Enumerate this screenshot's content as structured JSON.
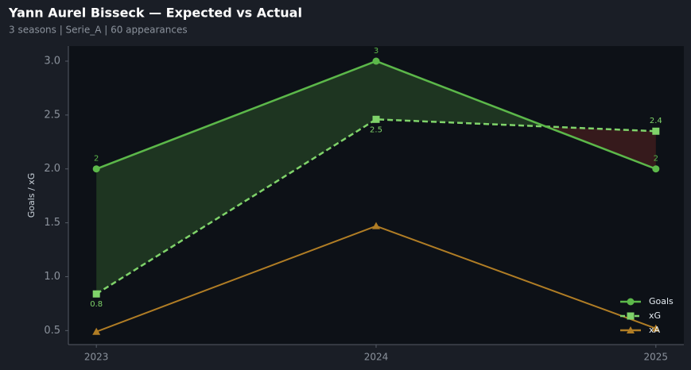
{
  "chart_data": {
    "type": "line",
    "title": "Yann Aurel Bisseck — Expected vs Actual",
    "subtitle": "3 seasons | Serie_A | 60 appearances",
    "y_label": "Goals / xG",
    "x": [
      2023,
      2024,
      2025
    ],
    "xlim": [
      2022.9,
      2025.1
    ],
    "xticks": [
      2023,
      2024,
      2025
    ],
    "ylim": [
      0.37,
      3.14
    ],
    "yticks": [
      0.5,
      {
        "value": 1,
        "label": "1.0"
      },
      1.5,
      {
        "value": 2,
        "label": "2.0"
      },
      2.5,
      {
        "value": 3,
        "label": "3.0"
      }
    ],
    "legend": "lower right",
    "series": [
      {
        "name": "Goals",
        "color": "#5cb84a",
        "marker": "circle",
        "dash": false,
        "values": [
          2,
          3,
          2
        ],
        "value_labels": [
          "2",
          "3",
          "2"
        ]
      },
      {
        "name": "xG",
        "color": "#7fd36a",
        "marker": "square",
        "dash": true,
        "values": [
          0.84,
          2.46,
          2.35
        ],
        "value_labels": [
          "0.8",
          "2.5",
          "2.4"
        ]
      },
      {
        "name": "xA",
        "color": "#b07d25",
        "marker": "triangle",
        "dash": false,
        "values": [
          0.49,
          1.47,
          0.52
        ]
      }
    ]
  }
}
